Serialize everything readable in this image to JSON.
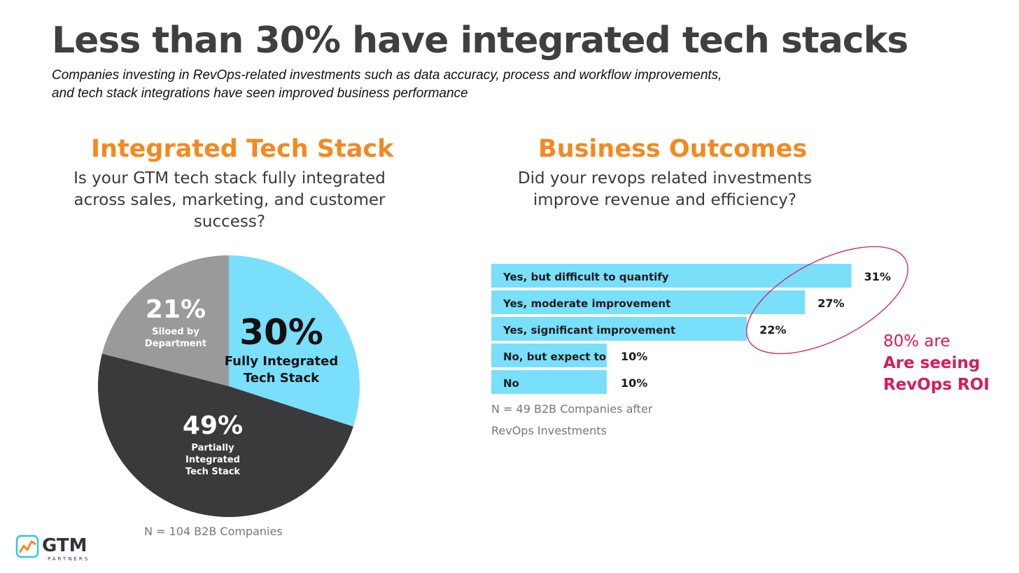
{
  "title": "Less than 30% have integrated tech stacks",
  "subtitle": [
    "Companies investing in RevOps-related investments such as data accuracy, process and workflow improvements,",
    "and tech stack integrations have seen improved business performance"
  ],
  "colors": {
    "accent": "#f28a20",
    "bar": "#79dffb",
    "pie_cyan": "#79dffb",
    "pie_dark": "#3a3a3d",
    "pie_gray": "#9a9a9a",
    "roi": "#d81b5b"
  },
  "chart_data": [
    {
      "type": "pie",
      "title": "Integrated Tech Stack",
      "question": [
        "Is your GTM tech stack fully integrated",
        "across sales, marketing, and customer",
        "success?"
      ],
      "slices": [
        {
          "pct_label": "30%",
          "label_lines": [
            "Fully Integrated",
            "Tech Stack"
          ],
          "value": 30,
          "color": "#79dffb"
        },
        {
          "pct_label": "49%",
          "label_lines": [
            "Partially",
            "Integrated",
            "Tech Stack"
          ],
          "value": 49,
          "color": "#3a3a3d"
        },
        {
          "pct_label": "21%",
          "label_lines": [
            "Siloed by",
            "Department"
          ],
          "value": 21,
          "color": "#9a9a9a"
        }
      ],
      "note": "N = 104 B2B Companies"
    },
    {
      "type": "bar",
      "orientation": "horizontal",
      "title": "Business Outcomes",
      "question": [
        "Did your revops related investments",
        "improve revenue and efficiency?"
      ],
      "categories": [
        "Yes, but difficult to quantify",
        "Yes, moderate improvement",
        "Yes, significant improvement",
        "No, but expect to",
        "No"
      ],
      "values": [
        31,
        27,
        22,
        10,
        10
      ],
      "value_labels": [
        "31%",
        "27%",
        "22%",
        "10%",
        "10%"
      ],
      "note": [
        "N = 49 B2B Companies after",
        "RevOps Investments"
      ],
      "annotation": {
        "line1": "80% are",
        "line2": "Are seeing",
        "line3": "RevOps ROI"
      }
    }
  ],
  "logo": {
    "name": "GTM",
    "sub": "PARTNERS"
  }
}
